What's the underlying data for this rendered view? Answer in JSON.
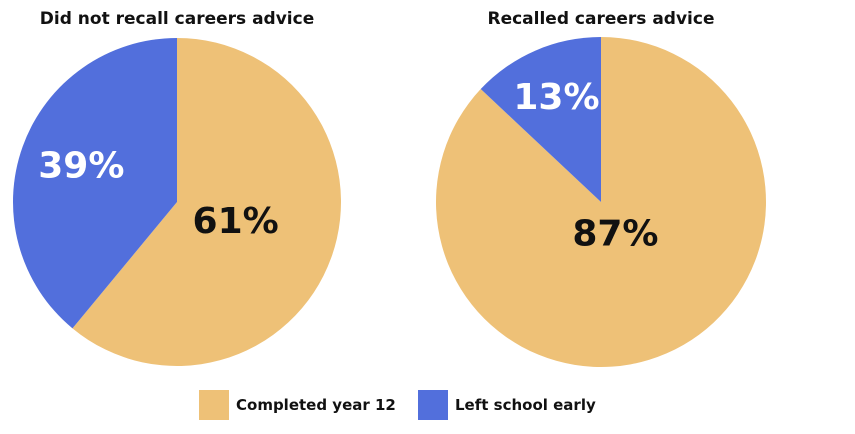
{
  "chart_data": [
    {
      "type": "pie",
      "title": "Did not recall careers advice",
      "slices": [
        {
          "label": "Completed year 12",
          "value": 61,
          "display": "61%"
        },
        {
          "label": "Left school early",
          "value": 39,
          "display": "39%"
        }
      ]
    },
    {
      "type": "pie",
      "title": "Recalled careers advice",
      "slices": [
        {
          "label": "Completed year 12",
          "value": 87,
          "display": "87%"
        },
        {
          "label": "Left school early",
          "value": 13,
          "display": "13%"
        }
      ]
    }
  ],
  "legend": {
    "placement": "bottom-center",
    "items": [
      {
        "label": "Completed year 12",
        "color": "#EEC177"
      },
      {
        "label": "Left school early",
        "color": "#526FDC"
      }
    ]
  },
  "colors": {
    "completed": "#EEC177",
    "left": "#526FDC",
    "label_on_completed": "#111111",
    "label_on_left": "#ffffff"
  }
}
